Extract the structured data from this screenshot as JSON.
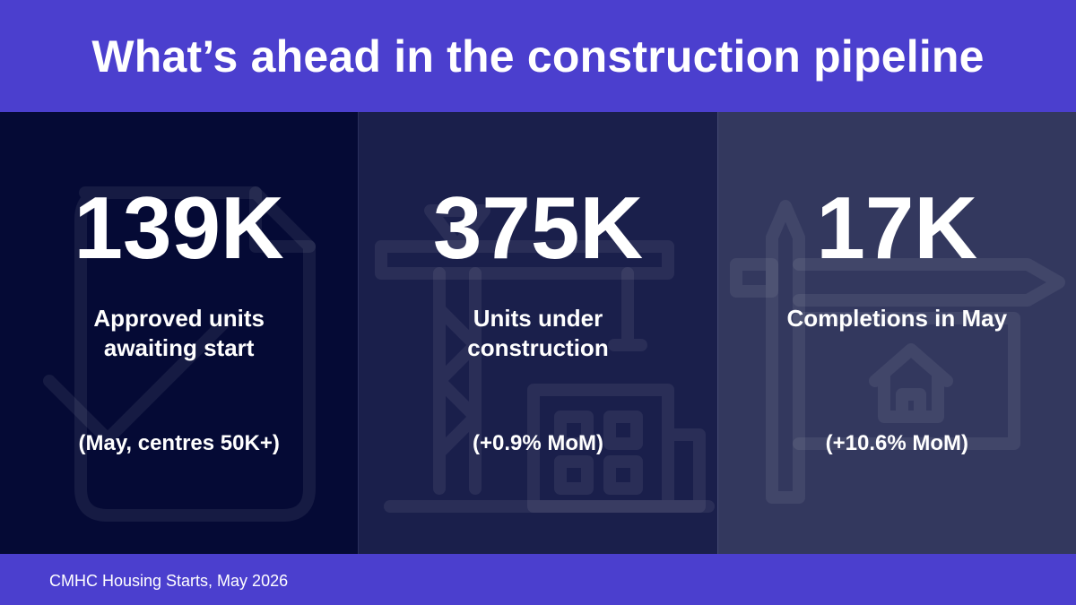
{
  "header": {
    "title": "What’s ahead in the construction pipeline"
  },
  "panels": [
    {
      "value": "139K",
      "label": "Approved units awaiting start",
      "note": "(May, centres 50K+)"
    },
    {
      "value": "375K",
      "label": "Units under construction",
      "note": "(+0.9% MoM)"
    },
    {
      "value": "17K",
      "label": "Completions in May",
      "note": "(+10.6% MoM)"
    }
  ],
  "footer": {
    "source": "CMHC Housing Starts, May 2026"
  }
}
